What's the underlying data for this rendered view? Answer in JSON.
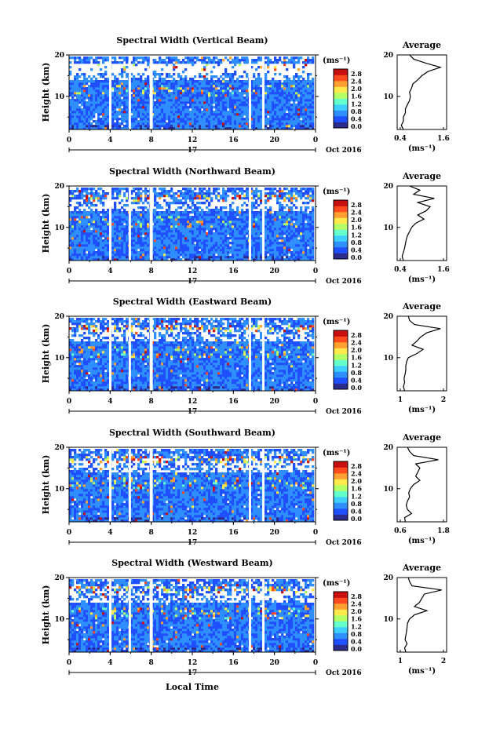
{
  "figure": {
    "xlabel": "Local Time",
    "x_ticks": [
      "0",
      "4",
      "8",
      "12",
      "16",
      "20",
      "0"
    ],
    "day_label": "17",
    "date_label": "Oct 2016",
    "ylabel": "Height (km)",
    "colorbar_unit": "(ms⁻¹)",
    "colorbar_ticks": [
      "2.8",
      "2.4",
      "2.0",
      "1.6",
      "1.2",
      "0.8",
      "0.4",
      "0.0"
    ],
    "average_title": "Average",
    "average_unit": "(ms⁻¹)",
    "colormap": [
      "#2b2b8c",
      "#1f4fff",
      "#2f8fff",
      "#3fd0ff",
      "#66ffcc",
      "#b4ff66",
      "#ffe94d",
      "#ffa030",
      "#ff4a1f",
      "#c80f0f"
    ]
  },
  "chart_data": [
    {
      "type": "heatmap",
      "title": "Spectral Width (Vertical Beam)",
      "xlim": [
        0,
        24
      ],
      "ylim": [
        2,
        20
      ],
      "clim": [
        0,
        3.0
      ],
      "data_gaps_hours": [
        [
          3.9,
          4.1
        ],
        [
          5.8,
          6.0
        ],
        [
          7.85,
          8.15
        ],
        [
          17.5,
          17.7
        ],
        [
          18.8,
          19.0
        ]
      ],
      "avg": {
        "xlim": [
          0.4,
          1.6
        ],
        "x_ticks": [
          "0.4",
          "1.6"
        ],
        "profile": [
          [
            2,
            0.55
          ],
          [
            3,
            0.5
          ],
          [
            4,
            0.55
          ],
          [
            5,
            0.55
          ],
          [
            6,
            0.6
          ],
          [
            7,
            0.6
          ],
          [
            8,
            0.65
          ],
          [
            9,
            0.7
          ],
          [
            10,
            0.72
          ],
          [
            11,
            0.7
          ],
          [
            12,
            0.75
          ],
          [
            13,
            0.78
          ],
          [
            14,
            0.9
          ],
          [
            15,
            1.0
          ],
          [
            16,
            1.15
          ],
          [
            17,
            1.45
          ],
          [
            18,
            1.1
          ],
          [
            19,
            0.8
          ],
          [
            20,
            0.7
          ]
        ]
      }
    },
    {
      "type": "heatmap",
      "title": "Spectral Width (Northward Beam)",
      "xlim": [
        0,
        24
      ],
      "ylim": [
        2,
        20
      ],
      "clim": [
        0,
        3.0
      ],
      "data_gaps_hours": [
        [
          3.9,
          4.1
        ],
        [
          5.8,
          6.0
        ],
        [
          7.85,
          8.15
        ],
        [
          17.5,
          17.7
        ],
        [
          18.8,
          19.0
        ]
      ],
      "avg": {
        "xlim": [
          0.4,
          1.6
        ],
        "x_ticks": [
          "0.4",
          "1.6"
        ],
        "profile": [
          [
            2,
            0.55
          ],
          [
            3,
            0.52
          ],
          [
            4,
            0.55
          ],
          [
            5,
            0.58
          ],
          [
            6,
            0.6
          ],
          [
            7,
            0.62
          ],
          [
            8,
            0.65
          ],
          [
            9,
            0.7
          ],
          [
            10,
            0.75
          ],
          [
            11,
            0.85
          ],
          [
            12,
            1.05
          ],
          [
            13,
            0.9
          ],
          [
            14,
            1.1
          ],
          [
            15,
            1.2
          ],
          [
            16,
            0.9
          ],
          [
            17,
            1.3
          ],
          [
            18,
            0.8
          ],
          [
            19,
            0.95
          ],
          [
            20,
            0.7
          ]
        ]
      }
    },
    {
      "type": "heatmap",
      "title": "Spectral Width (Eastward Beam)",
      "xlim": [
        0,
        24
      ],
      "ylim": [
        2,
        20
      ],
      "clim": [
        0,
        3.0
      ],
      "data_gaps_hours": [
        [
          3.9,
          4.1
        ],
        [
          5.8,
          6.0
        ],
        [
          7.85,
          8.15
        ],
        [
          17.5,
          17.7
        ],
        [
          18.8,
          19.0
        ]
      ],
      "avg": {
        "xlim": [
          0.4,
          2.4
        ],
        "x_ticks": [
          "1",
          "2"
        ],
        "profile": [
          [
            2,
            0.7
          ],
          [
            3,
            0.65
          ],
          [
            4,
            0.7
          ],
          [
            5,
            0.68
          ],
          [
            6,
            0.72
          ],
          [
            7,
            0.75
          ],
          [
            8,
            0.75
          ],
          [
            9,
            0.78
          ],
          [
            10,
            0.85
          ],
          [
            11,
            1.2
          ],
          [
            12,
            1.45
          ],
          [
            13,
            1.0
          ],
          [
            14,
            1.2
          ],
          [
            15,
            1.35
          ],
          [
            16,
            1.6
          ],
          [
            17,
            2.15
          ],
          [
            18,
            1.1
          ],
          [
            19,
            0.9
          ],
          [
            20,
            0.85
          ]
        ]
      }
    },
    {
      "type": "heatmap",
      "title": "Spectral Width (Southward Beam)",
      "xlim": [
        0,
        24
      ],
      "ylim": [
        2,
        20
      ],
      "clim": [
        0,
        3.0
      ],
      "data_gaps_hours": [
        [
          3.9,
          4.1
        ],
        [
          5.8,
          6.0
        ],
        [
          7.85,
          8.15
        ],
        [
          17.5,
          17.7
        ],
        [
          18.8,
          19.0
        ]
      ],
      "avg": {
        "xlim": [
          0.6,
          1.8
        ],
        "x_ticks": [
          "0.6",
          "1.8"
        ],
        "profile": [
          [
            2,
            0.8
          ],
          [
            3,
            0.78
          ],
          [
            4,
            0.95
          ],
          [
            5,
            0.85
          ],
          [
            6,
            0.82
          ],
          [
            7,
            0.85
          ],
          [
            8,
            0.9
          ],
          [
            9,
            0.88
          ],
          [
            10,
            0.92
          ],
          [
            11,
            1.0
          ],
          [
            12,
            1.15
          ],
          [
            13,
            1.05
          ],
          [
            14,
            1.1
          ],
          [
            15,
            1.15
          ],
          [
            16,
            1.05
          ],
          [
            17,
            1.6
          ],
          [
            18,
            1.0
          ],
          [
            19,
            0.9
          ],
          [
            20,
            0.85
          ]
        ]
      }
    },
    {
      "type": "heatmap",
      "title": "Spectral Width (Westward Beam)",
      "xlim": [
        0,
        24
      ],
      "ylim": [
        2,
        20
      ],
      "clim": [
        0,
        3.0
      ],
      "data_gaps_hours": [
        [
          3.9,
          4.1
        ],
        [
          5.8,
          6.0
        ],
        [
          7.85,
          8.15
        ],
        [
          17.5,
          17.7
        ],
        [
          18.8,
          19.0
        ]
      ],
      "avg": {
        "xlim": [
          0.4,
          2.4
        ],
        "x_ticks": [
          "1",
          "2"
        ],
        "profile": [
          [
            2,
            0.75
          ],
          [
            3,
            0.7
          ],
          [
            4,
            0.8
          ],
          [
            5,
            0.72
          ],
          [
            6,
            0.75
          ],
          [
            7,
            0.78
          ],
          [
            8,
            0.8
          ],
          [
            9,
            0.82
          ],
          [
            10,
            0.9
          ],
          [
            11,
            1.1
          ],
          [
            12,
            1.6
          ],
          [
            13,
            1.1
          ],
          [
            14,
            1.3
          ],
          [
            15,
            1.4
          ],
          [
            16,
            1.5
          ],
          [
            17,
            2.2
          ],
          [
            18,
            1.0
          ],
          [
            19,
            0.9
          ],
          [
            20,
            0.85
          ]
        ]
      }
    }
  ]
}
